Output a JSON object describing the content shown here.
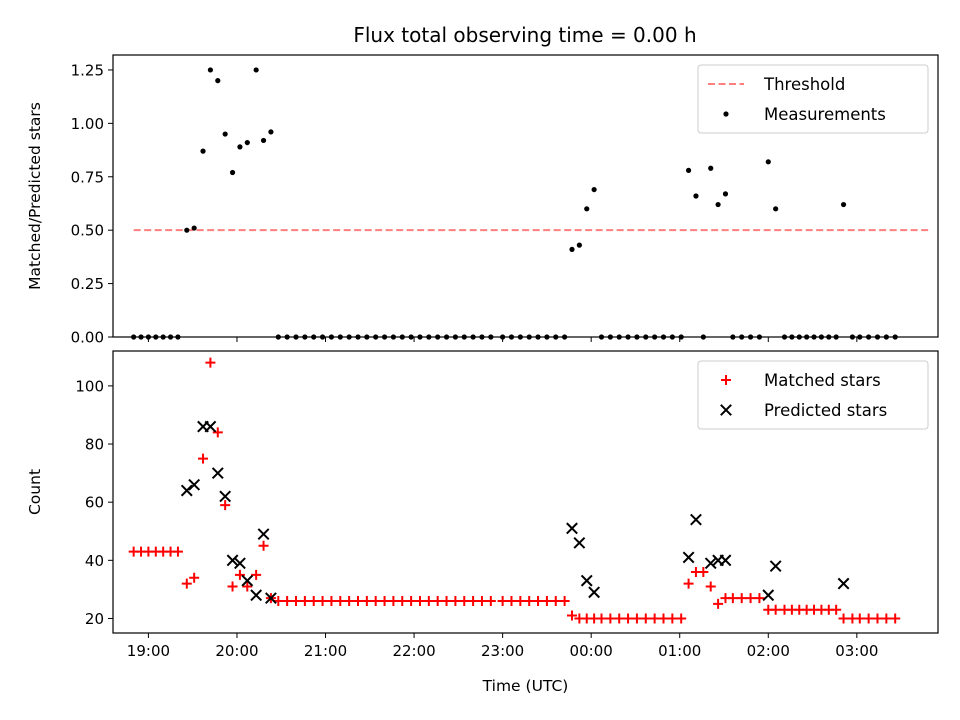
{
  "figure": {
    "title": "Flux total observing time = 0.00 h"
  },
  "chart_data": [
    {
      "type": "scatter",
      "ylabel": "Matched/Predicted stars",
      "xlabel": "",
      "xlim": [
        "18:36",
        "03:55"
      ],
      "ylim": [
        0,
        1.32
      ],
      "x_ticks": [
        "19:00",
        "20:00",
        "21:00",
        "22:00",
        "23:00",
        "00:00",
        "01:00",
        "02:00",
        "03:00"
      ],
      "y_ticks": [
        0.0,
        0.25,
        0.5,
        0.75,
        1.0,
        1.25
      ],
      "y_tick_labels": [
        "0.00",
        "0.25",
        "0.50",
        "0.75",
        "1.00",
        "1.25"
      ],
      "legend": {
        "position": "upper right",
        "entries": [
          "Threshold",
          "Measurements"
        ]
      },
      "colors": {
        "threshold": "#ff7f7f",
        "measurements": "#000000"
      },
      "series": [
        {
          "name": "Threshold",
          "kind": "dashed-line",
          "points": [
            [
              "18:50",
              0.5
            ],
            [
              "03:50",
              0.5
            ]
          ]
        },
        {
          "name": "Measurements",
          "kind": "dots",
          "points": [
            [
              "18:50",
              0
            ],
            [
              "18:55",
              0
            ],
            [
              "19:00",
              0
            ],
            [
              "19:05",
              0
            ],
            [
              "19:10",
              0
            ],
            [
              "19:15",
              0
            ],
            [
              "19:20",
              0
            ],
            [
              "19:26",
              0.5
            ],
            [
              "19:31",
              0.51
            ],
            [
              "19:37",
              0.87
            ],
            [
              "19:42",
              1.25
            ],
            [
              "19:47",
              1.2
            ],
            [
              "19:52",
              0.95
            ],
            [
              "19:57",
              0.77
            ],
            [
              "20:02",
              0.89
            ],
            [
              "20:07",
              0.91
            ],
            [
              "20:13",
              1.25
            ],
            [
              "20:18",
              0.92
            ],
            [
              "20:23",
              0.96
            ],
            [
              "20:28",
              0
            ],
            [
              "20:34",
              0
            ],
            [
              "20:40",
              0
            ],
            [
              "20:46",
              0
            ],
            [
              "20:52",
              0
            ],
            [
              "20:58",
              0
            ],
            [
              "21:04",
              0
            ],
            [
              "21:10",
              0
            ],
            [
              "21:16",
              0
            ],
            [
              "21:22",
              0
            ],
            [
              "21:28",
              0
            ],
            [
              "21:34",
              0
            ],
            [
              "21:40",
              0
            ],
            [
              "21:46",
              0
            ],
            [
              "21:52",
              0
            ],
            [
              "21:58",
              0
            ],
            [
              "22:04",
              0
            ],
            [
              "22:10",
              0
            ],
            [
              "22:16",
              0
            ],
            [
              "22:22",
              0
            ],
            [
              "22:28",
              0
            ],
            [
              "22:34",
              0
            ],
            [
              "22:40",
              0
            ],
            [
              "22:46",
              0
            ],
            [
              "22:52",
              0
            ],
            [
              "23:00",
              0
            ],
            [
              "23:06",
              0
            ],
            [
              "23:12",
              0
            ],
            [
              "23:18",
              0
            ],
            [
              "23:24",
              0
            ],
            [
              "23:30",
              0
            ],
            [
              "23:36",
              0
            ],
            [
              "23:42",
              0
            ],
            [
              "23:47",
              0.41
            ],
            [
              "23:52",
              0.43
            ],
            [
              "23:57",
              0.6
            ],
            [
              "00:02",
              0.69
            ],
            [
              "00:07",
              0
            ],
            [
              "00:13",
              0
            ],
            [
              "00:19",
              0
            ],
            [
              "00:25",
              0
            ],
            [
              "00:31",
              0
            ],
            [
              "00:37",
              0
            ],
            [
              "00:43",
              0
            ],
            [
              "00:49",
              0
            ],
            [
              "00:55",
              0
            ],
            [
              "01:01",
              0
            ],
            [
              "01:06",
              0.78
            ],
            [
              "01:11",
              0.66
            ],
            [
              "01:16",
              0
            ],
            [
              "01:21",
              0.79
            ],
            [
              "01:26",
              0.62
            ],
            [
              "01:31",
              0.67
            ],
            [
              "01:36",
              0
            ],
            [
              "01:42",
              0
            ],
            [
              "01:48",
              0
            ],
            [
              "01:54",
              0
            ],
            [
              "02:00",
              0.82
            ],
            [
              "02:05",
              0.6
            ],
            [
              "02:11",
              0
            ],
            [
              "02:16",
              0
            ],
            [
              "02:21",
              0
            ],
            [
              "02:26",
              0
            ],
            [
              "02:31",
              0
            ],
            [
              "02:36",
              0
            ],
            [
              "02:41",
              0
            ],
            [
              "02:46",
              0
            ],
            [
              "02:51",
              0.62
            ],
            [
              "02:57",
              0
            ],
            [
              "03:02",
              0
            ],
            [
              "03:08",
              0
            ],
            [
              "03:14",
              0
            ],
            [
              "03:20",
              0
            ],
            [
              "03:26",
              0
            ]
          ]
        }
      ]
    },
    {
      "type": "scatter",
      "ylabel": "Count",
      "xlabel": "Time (UTC)",
      "xlim": [
        "18:36",
        "03:55"
      ],
      "ylim": [
        15,
        112
      ],
      "x_ticks": [
        "19:00",
        "20:00",
        "21:00",
        "22:00",
        "23:00",
        "00:00",
        "01:00",
        "02:00",
        "03:00"
      ],
      "y_ticks": [
        20,
        40,
        60,
        80,
        100
      ],
      "y_tick_labels": [
        "20",
        "40",
        "60",
        "80",
        "100"
      ],
      "legend": {
        "position": "upper right",
        "entries": [
          "Matched stars",
          "Predicted stars"
        ]
      },
      "colors": {
        "matched": "#ff0000",
        "predicted": "#000000"
      },
      "series": [
        {
          "name": "Matched stars",
          "marker": "plus",
          "points": [
            [
              "18:50",
              43
            ],
            [
              "18:55",
              43
            ],
            [
              "19:00",
              43
            ],
            [
              "19:05",
              43
            ],
            [
              "19:10",
              43
            ],
            [
              "19:15",
              43
            ],
            [
              "19:20",
              43
            ],
            [
              "19:26",
              32
            ],
            [
              "19:31",
              34
            ],
            [
              "19:37",
              75
            ],
            [
              "19:42",
              108
            ],
            [
              "19:47",
              84
            ],
            [
              "19:52",
              59
            ],
            [
              "19:57",
              31
            ],
            [
              "20:02",
              35
            ],
            [
              "20:07",
              31
            ],
            [
              "20:13",
              35
            ],
            [
              "20:18",
              45
            ],
            [
              "20:23",
              27
            ],
            [
              "20:28",
              26
            ],
            [
              "20:34",
              26
            ],
            [
              "20:40",
              26
            ],
            [
              "20:46",
              26
            ],
            [
              "20:52",
              26
            ],
            [
              "20:58",
              26
            ],
            [
              "21:04",
              26
            ],
            [
              "21:10",
              26
            ],
            [
              "21:16",
              26
            ],
            [
              "21:22",
              26
            ],
            [
              "21:28",
              26
            ],
            [
              "21:34",
              26
            ],
            [
              "21:40",
              26
            ],
            [
              "21:46",
              26
            ],
            [
              "21:52",
              26
            ],
            [
              "21:58",
              26
            ],
            [
              "22:04",
              26
            ],
            [
              "22:10",
              26
            ],
            [
              "22:16",
              26
            ],
            [
              "22:22",
              26
            ],
            [
              "22:28",
              26
            ],
            [
              "22:34",
              26
            ],
            [
              "22:40",
              26
            ],
            [
              "22:46",
              26
            ],
            [
              "22:52",
              26
            ],
            [
              "23:00",
              26
            ],
            [
              "23:06",
              26
            ],
            [
              "23:12",
              26
            ],
            [
              "23:18",
              26
            ],
            [
              "23:24",
              26
            ],
            [
              "23:30",
              26
            ],
            [
              "23:36",
              26
            ],
            [
              "23:42",
              26
            ],
            [
              "23:47",
              21
            ],
            [
              "23:52",
              20
            ],
            [
              "23:57",
              20
            ],
            [
              "00:02",
              20
            ],
            [
              "00:07",
              20
            ],
            [
              "00:13",
              20
            ],
            [
              "00:19",
              20
            ],
            [
              "00:25",
              20
            ],
            [
              "00:31",
              20
            ],
            [
              "00:37",
              20
            ],
            [
              "00:43",
              20
            ],
            [
              "00:49",
              20
            ],
            [
              "00:55",
              20
            ],
            [
              "01:01",
              20
            ],
            [
              "01:06",
              32
            ],
            [
              "01:11",
              36
            ],
            [
              "01:16",
              36
            ],
            [
              "01:21",
              31
            ],
            [
              "01:26",
              25
            ],
            [
              "01:31",
              27
            ],
            [
              "01:36",
              27
            ],
            [
              "01:42",
              27
            ],
            [
              "01:48",
              27
            ],
            [
              "01:54",
              27
            ],
            [
              "02:00",
              23
            ],
            [
              "02:05",
              23
            ],
            [
              "02:11",
              23
            ],
            [
              "02:16",
              23
            ],
            [
              "02:21",
              23
            ],
            [
              "02:26",
              23
            ],
            [
              "02:31",
              23
            ],
            [
              "02:36",
              23
            ],
            [
              "02:41",
              23
            ],
            [
              "02:46",
              23
            ],
            [
              "02:51",
              20
            ],
            [
              "02:57",
              20
            ],
            [
              "03:02",
              20
            ],
            [
              "03:08",
              20
            ],
            [
              "03:14",
              20
            ],
            [
              "03:20",
              20
            ],
            [
              "03:26",
              20
            ]
          ]
        },
        {
          "name": "Predicted stars",
          "marker": "x",
          "points": [
            [
              "19:26",
              64
            ],
            [
              "19:31",
              66
            ],
            [
              "19:37",
              86
            ],
            [
              "19:42",
              86
            ],
            [
              "19:47",
              70
            ],
            [
              "19:52",
              62
            ],
            [
              "19:57",
              40
            ],
            [
              "20:02",
              39
            ],
            [
              "20:07",
              33
            ],
            [
              "20:13",
              28
            ],
            [
              "20:18",
              49
            ],
            [
              "20:23",
              27
            ],
            [
              "23:47",
              51
            ],
            [
              "23:52",
              46
            ],
            [
              "23:57",
              33
            ],
            [
              "00:02",
              29
            ],
            [
              "01:06",
              41
            ],
            [
              "01:11",
              54
            ],
            [
              "01:21",
              39
            ],
            [
              "01:26",
              40
            ],
            [
              "01:31",
              40
            ],
            [
              "02:00",
              28
            ],
            [
              "02:05",
              38
            ],
            [
              "02:51",
              32
            ]
          ]
        }
      ]
    }
  ]
}
